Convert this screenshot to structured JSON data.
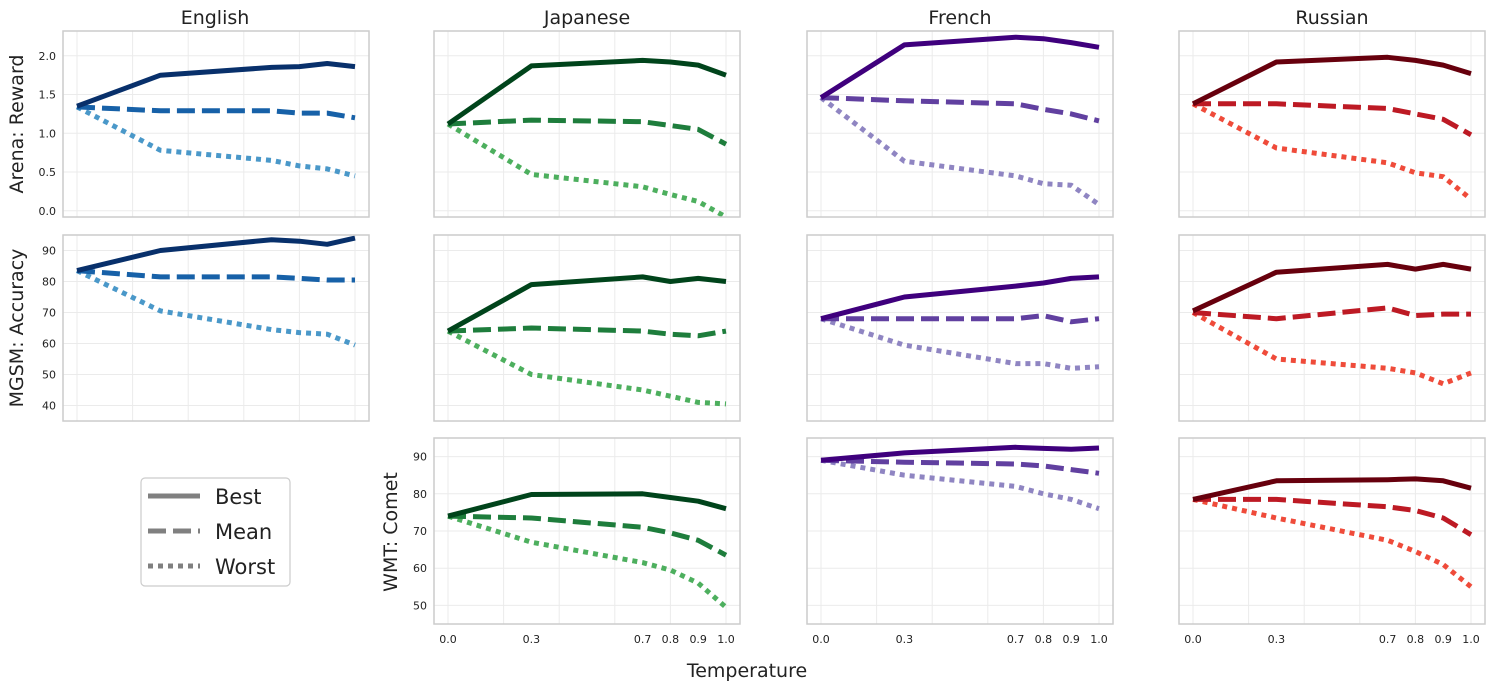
{
  "figure": {
    "xlabel": "Temperature",
    "columns": [
      "English",
      "Japanese",
      "French",
      "Russian"
    ],
    "rows": [
      "Arena: Reward",
      "MGSM: Accuracy",
      "WMT: Comet"
    ],
    "legend": {
      "placement": "bottom-left",
      "items": [
        {
          "label": "Best",
          "style": "solid"
        },
        {
          "label": "Mean",
          "style": "dashed"
        },
        {
          "label": "Worst",
          "style": "dotted"
        }
      ]
    },
    "x_ticks": [
      "0.0",
      "0.3",
      "0.7",
      "0.8",
      "0.9",
      "1.0"
    ]
  },
  "chart_data": [
    {
      "type": "line",
      "row": "Arena: Reward",
      "column": "English",
      "ylabel": "Arena: Reward",
      "x": [
        0.0,
        0.3,
        0.7,
        0.8,
        0.9,
        1.0
      ],
      "ylim": [
        -0.08,
        2.32
      ],
      "yticks": [
        "0.0",
        "0.5",
        "1.0",
        "1.5",
        "2.0"
      ],
      "colors": {
        "Best": "#08306b",
        "Mean": "#1761a8",
        "Worst": "#4a98c9"
      },
      "series": [
        {
          "name": "Best",
          "values": [
            1.35,
            1.75,
            1.85,
            1.86,
            1.9,
            1.86
          ]
        },
        {
          "name": "Mean",
          "values": [
            1.34,
            1.29,
            1.29,
            1.26,
            1.26,
            1.2
          ]
        },
        {
          "name": "Worst",
          "values": [
            1.34,
            0.78,
            0.65,
            0.58,
            0.54,
            0.45
          ]
        }
      ]
    },
    {
      "type": "line",
      "row": "Arena: Reward",
      "column": "Japanese",
      "x": [
        0.0,
        0.3,
        0.7,
        0.8,
        0.9,
        1.0
      ],
      "ylim": [
        -0.08,
        2.32
      ],
      "colors": {
        "Best": "#00441b",
        "Mean": "#1e7d3c",
        "Worst": "#4daf5e"
      },
      "series": [
        {
          "name": "Best",
          "values": [
            1.12,
            1.87,
            1.94,
            1.92,
            1.88,
            1.75
          ]
        },
        {
          "name": "Mean",
          "values": [
            1.12,
            1.17,
            1.15,
            1.1,
            1.05,
            0.86
          ]
        },
        {
          "name": "Worst",
          "values": [
            1.12,
            0.47,
            0.31,
            0.21,
            0.12,
            -0.08
          ]
        }
      ]
    },
    {
      "type": "line",
      "row": "Arena: Reward",
      "column": "French",
      "x": [
        0.0,
        0.3,
        0.7,
        0.8,
        0.9,
        1.0
      ],
      "ylim": [
        -0.08,
        2.32
      ],
      "colors": {
        "Best": "#3f007d",
        "Mean": "#6140a0",
        "Worst": "#8f85c2"
      },
      "series": [
        {
          "name": "Best",
          "values": [
            1.46,
            2.14,
            2.24,
            2.22,
            2.17,
            2.11
          ]
        },
        {
          "name": "Mean",
          "values": [
            1.46,
            1.42,
            1.38,
            1.31,
            1.25,
            1.16
          ]
        },
        {
          "name": "Worst",
          "values": [
            1.46,
            0.64,
            0.45,
            0.35,
            0.33,
            0.08
          ]
        }
      ]
    },
    {
      "type": "line",
      "row": "Arena: Reward",
      "column": "Russian",
      "x": [
        0.0,
        0.3,
        0.7,
        0.8,
        0.9,
        1.0
      ],
      "ylim": [
        -0.08,
        2.32
      ],
      "colors": {
        "Best": "#67000d",
        "Mean": "#bd1a24",
        "Worst": "#ef4b3a"
      },
      "series": [
        {
          "name": "Best",
          "values": [
            1.38,
            1.92,
            1.98,
            1.94,
            1.88,
            1.77
          ]
        },
        {
          "name": "Mean",
          "values": [
            1.38,
            1.38,
            1.32,
            1.25,
            1.18,
            0.98
          ]
        },
        {
          "name": "Worst",
          "values": [
            1.38,
            0.81,
            0.62,
            0.49,
            0.44,
            0.15
          ]
        }
      ]
    },
    {
      "type": "line",
      "row": "MGSM: Accuracy",
      "column": "English",
      "ylabel": "MGSM: Accuracy",
      "x": [
        0.0,
        0.3,
        0.7,
        0.8,
        0.9,
        1.0
      ],
      "ylim": [
        35,
        95
      ],
      "yticks": [
        "40",
        "50",
        "60",
        "70",
        "80",
        "90"
      ],
      "colors": {
        "Best": "#08306b",
        "Mean": "#1761a8",
        "Worst": "#4a98c9"
      },
      "series": [
        {
          "name": "Best",
          "values": [
            83.5,
            90.0,
            93.5,
            93.0,
            92.0,
            94.0
          ]
        },
        {
          "name": "Mean",
          "values": [
            83.5,
            81.5,
            81.5,
            81.0,
            80.5,
            80.5
          ]
        },
        {
          "name": "Worst",
          "values": [
            83.5,
            70.5,
            64.5,
            63.5,
            63.0,
            59.5
          ]
        }
      ]
    },
    {
      "type": "line",
      "row": "MGSM: Accuracy",
      "column": "Japanese",
      "x": [
        0.0,
        0.3,
        0.7,
        0.8,
        0.9,
        1.0
      ],
      "ylim": [
        35,
        95
      ],
      "colors": {
        "Best": "#00441b",
        "Mean": "#1e7d3c",
        "Worst": "#4daf5e"
      },
      "series": [
        {
          "name": "Best",
          "values": [
            64.0,
            79.0,
            81.5,
            80.0,
            81.0,
            80.0
          ]
        },
        {
          "name": "Mean",
          "values": [
            64.0,
            65.0,
            64.0,
            63.0,
            62.5,
            64.0
          ]
        },
        {
          "name": "Worst",
          "values": [
            64.0,
            50.0,
            45.0,
            43.0,
            41.0,
            40.5
          ]
        }
      ]
    },
    {
      "type": "line",
      "row": "MGSM: Accuracy",
      "column": "French",
      "x": [
        0.0,
        0.3,
        0.7,
        0.8,
        0.9,
        1.0
      ],
      "ylim": [
        35,
        95
      ],
      "colors": {
        "Best": "#3f007d",
        "Mean": "#6140a0",
        "Worst": "#8f85c2"
      },
      "series": [
        {
          "name": "Best",
          "values": [
            68.0,
            75.0,
            78.5,
            79.5,
            81.0,
            81.5
          ]
        },
        {
          "name": "Mean",
          "values": [
            68.0,
            68.0,
            68.0,
            69.0,
            67.0,
            68.0
          ]
        },
        {
          "name": "Worst",
          "values": [
            68.0,
            59.5,
            53.5,
            53.5,
            52.0,
            52.5
          ]
        }
      ]
    },
    {
      "type": "line",
      "row": "MGSM: Accuracy",
      "column": "Russian",
      "x": [
        0.0,
        0.3,
        0.7,
        0.8,
        0.9,
        1.0
      ],
      "ylim": [
        35,
        95
      ],
      "colors": {
        "Best": "#67000d",
        "Mean": "#bd1a24",
        "Worst": "#ef4b3a"
      },
      "series": [
        {
          "name": "Best",
          "values": [
            70.5,
            83.0,
            85.5,
            84.0,
            85.5,
            84.0
          ]
        },
        {
          "name": "Mean",
          "values": [
            70.0,
            68.0,
            71.5,
            69.0,
            69.5,
            69.5
          ]
        },
        {
          "name": "Worst",
          "values": [
            70.0,
            55.0,
            52.0,
            50.5,
            47.0,
            50.5
          ]
        }
      ]
    },
    {
      "type": "line",
      "row": "WMT: Comet",
      "column": "Japanese",
      "ylabel": "WMT: Comet",
      "x": [
        0.0,
        0.3,
        0.7,
        0.8,
        0.9,
        1.0
      ],
      "ylim": [
        45,
        95
      ],
      "yticks": [
        "50",
        "60",
        "70",
        "80",
        "90"
      ],
      "colors": {
        "Best": "#00441b",
        "Mean": "#1e7d3c",
        "Worst": "#4daf5e"
      },
      "series": [
        {
          "name": "Best",
          "values": [
            74.0,
            79.8,
            80.0,
            79.0,
            78.0,
            76.0
          ]
        },
        {
          "name": "Mean",
          "values": [
            74.0,
            73.5,
            71.0,
            69.5,
            67.5,
            63.5
          ]
        },
        {
          "name": "Worst",
          "values": [
            74.0,
            67.0,
            61.5,
            59.5,
            56.0,
            49.5
          ]
        }
      ]
    },
    {
      "type": "line",
      "row": "WMT: Comet",
      "column": "French",
      "x": [
        0.0,
        0.3,
        0.7,
        0.8,
        0.9,
        1.0
      ],
      "ylim": [
        45,
        95
      ],
      "colors": {
        "Best": "#3f007d",
        "Mean": "#6140a0",
        "Worst": "#8f85c2"
      },
      "series": [
        {
          "name": "Best",
          "values": [
            89.0,
            91.0,
            92.5,
            92.2,
            92.0,
            92.3
          ]
        },
        {
          "name": "Mean",
          "values": [
            89.0,
            88.5,
            88.0,
            87.5,
            86.5,
            85.5
          ]
        },
        {
          "name": "Worst",
          "values": [
            89.0,
            85.0,
            82.0,
            80.0,
            78.5,
            76.0
          ]
        }
      ]
    },
    {
      "type": "line",
      "row": "WMT: Comet",
      "column": "Russian",
      "x": [
        0.0,
        0.3,
        0.7,
        0.8,
        0.9,
        1.0
      ],
      "ylim": [
        45,
        95
      ],
      "colors": {
        "Best": "#67000d",
        "Mean": "#bd1a24",
        "Worst": "#ef4b3a"
      },
      "series": [
        {
          "name": "Best",
          "values": [
            78.5,
            83.5,
            83.8,
            84.0,
            83.5,
            81.5
          ]
        },
        {
          "name": "Mean",
          "values": [
            78.5,
            78.5,
            76.5,
            75.5,
            73.5,
            69.0
          ]
        },
        {
          "name": "Worst",
          "values": [
            78.5,
            73.5,
            67.5,
            64.5,
            61.0,
            55.0
          ]
        }
      ]
    }
  ]
}
